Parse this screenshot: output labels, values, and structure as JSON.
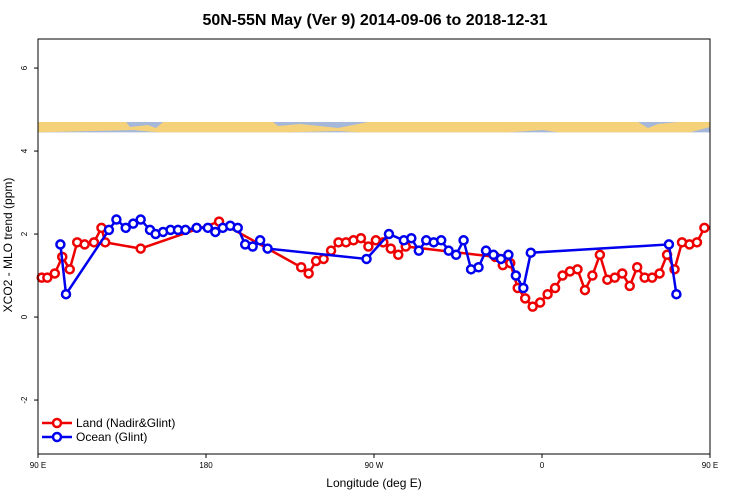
{
  "chart_data": {
    "type": "line",
    "title": "50N-55N May (Ver 9)   2014-09-06 to 2018-12-31",
    "xlabel": "Longitude (deg E)",
    "ylabel": "XCO2 - MLO trend (ppm)",
    "xlim": [
      90,
      450
    ],
    "ylim": [
      -3.3,
      6.7
    ],
    "x_ticks": [
      {
        "value": 90,
        "label": "90 E"
      },
      {
        "value": 180,
        "label": "180"
      },
      {
        "value": 270,
        "label": "90 W"
      },
      {
        "value": 360,
        "label": "0"
      },
      {
        "value": 450,
        "label": "90 E"
      },
      {
        "value": 540,
        "label": "180"
      }
    ],
    "y_ticks": [
      {
        "value": -2,
        "label": "-2"
      },
      {
        "value": 0,
        "label": "0"
      },
      {
        "value": 2,
        "label": "2"
      },
      {
        "value": 4,
        "label": "4"
      },
      {
        "value": 6,
        "label": "6"
      }
    ],
    "land_band": {
      "y_min": 4.45,
      "y_max": 4.7,
      "land_color": "#f5d27a",
      "ocean_color": "#a6b8d9"
    },
    "legend": {
      "position": "bottom-left"
    },
    "series": [
      {
        "name": "Land (Nadir&Glint)",
        "color": "#ee0000",
        "points": [
          [
            92,
            0.95
          ],
          [
            95,
            0.95
          ],
          [
            99,
            1.05
          ],
          [
            103,
            1.45
          ],
          [
            107,
            1.15
          ],
          [
            111,
            1.8
          ],
          [
            115,
            1.75
          ],
          [
            120,
            1.8
          ],
          [
            124,
            2.15
          ],
          [
            126,
            1.8
          ],
          [
            145,
            1.65
          ],
          [
            187,
            2.3
          ],
          [
            231,
            1.2
          ],
          [
            235,
            1.05
          ],
          [
            239,
            1.35
          ],
          [
            243,
            1.4
          ],
          [
            247,
            1.6
          ],
          [
            251,
            1.8
          ],
          [
            255,
            1.8
          ],
          [
            259,
            1.85
          ],
          [
            263,
            1.9
          ],
          [
            267,
            1.7
          ],
          [
            271,
            1.85
          ],
          [
            275,
            1.8
          ],
          [
            279,
            1.65
          ],
          [
            283,
            1.5
          ],
          [
            287,
            1.7
          ],
          [
            335,
            1.45
          ],
          [
            339,
            1.25
          ],
          [
            343,
            1.3
          ],
          [
            347,
            0.7
          ],
          [
            351,
            0.45
          ],
          [
            355,
            0.25
          ],
          [
            359,
            0.35
          ],
          [
            363,
            0.55
          ],
          [
            367,
            0.7
          ],
          [
            371,
            1.0
          ],
          [
            375,
            1.1
          ],
          [
            379,
            1.15
          ],
          [
            383,
            0.65
          ],
          [
            387,
            1.0
          ],
          [
            391,
            1.5
          ],
          [
            395,
            0.9
          ],
          [
            399,
            0.95
          ],
          [
            403,
            1.05
          ],
          [
            407,
            0.75
          ],
          [
            411,
            1.2
          ],
          [
            415,
            0.95
          ],
          [
            419,
            0.95
          ],
          [
            423,
            1.05
          ],
          [
            427,
            1.5
          ],
          [
            431,
            1.15
          ],
          [
            435,
            1.8
          ],
          [
            439,
            1.75
          ],
          [
            443,
            1.8
          ],
          [
            447,
            2.15
          ],
          [
            451,
            1.8
          ],
          [
            460,
            1.65
          ]
        ]
      },
      {
        "name": "Ocean (Glint)",
        "color": "#0000ee",
        "points": [
          [
            102,
            1.75
          ],
          [
            105,
            0.55
          ],
          [
            128,
            2.1
          ],
          [
            132,
            2.35
          ],
          [
            137,
            2.15
          ],
          [
            141,
            2.25
          ],
          [
            145,
            2.35
          ],
          [
            150,
            2.1
          ],
          [
            153,
            2.0
          ],
          [
            157,
            2.05
          ],
          [
            161,
            2.1
          ],
          [
            165,
            2.1
          ],
          [
            169,
            2.1
          ],
          [
            175,
            2.15
          ],
          [
            181,
            2.15
          ],
          [
            185,
            2.05
          ],
          [
            189,
            2.15
          ],
          [
            193,
            2.2
          ],
          [
            197,
            2.15
          ],
          [
            201,
            1.75
          ],
          [
            205,
            1.7
          ],
          [
            209,
            1.85
          ],
          [
            213,
            1.65
          ],
          [
            266,
            1.4
          ],
          [
            278,
            2.0
          ],
          [
            286,
            1.85
          ],
          [
            290,
            1.9
          ],
          [
            294,
            1.6
          ],
          [
            298,
            1.85
          ],
          [
            302,
            1.8
          ],
          [
            306,
            1.85
          ],
          [
            310,
            1.6
          ],
          [
            314,
            1.5
          ],
          [
            318,
            1.85
          ],
          [
            322,
            1.15
          ],
          [
            326,
            1.2
          ],
          [
            330,
            1.6
          ],
          [
            334,
            1.5
          ],
          [
            338,
            1.4
          ],
          [
            342,
            1.5
          ],
          [
            346,
            1.0
          ],
          [
            350,
            0.7
          ],
          [
            354,
            1.55
          ],
          [
            428,
            1.75
          ],
          [
            432,
            0.55
          ],
          [
            455,
            2.1
          ],
          [
            459,
            2.35
          ],
          [
            463,
            2.15
          ],
          [
            467,
            2.25
          ],
          [
            471,
            2.35
          ],
          [
            475,
            2.1
          ],
          [
            479,
            2.0
          ],
          [
            483,
            2.05
          ],
          [
            487,
            2.1
          ]
        ]
      }
    ]
  }
}
